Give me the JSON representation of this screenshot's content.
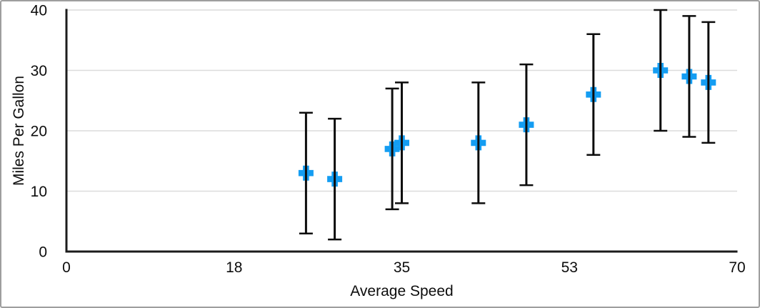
{
  "chart_data": {
    "type": "scatter",
    "title": "",
    "xlabel": "Average Speed",
    "ylabel": "Miles Per Gallon",
    "xlim": [
      0,
      70
    ],
    "ylim": [
      0,
      40
    ],
    "grid": "horizontal-only",
    "legend": "none",
    "marker": "plus-cross",
    "x_ticks": [
      {
        "value": 0,
        "label": "0"
      },
      {
        "value": 17.5,
        "label": "18"
      },
      {
        "value": 35,
        "label": "35"
      },
      {
        "value": 52.5,
        "label": "53"
      },
      {
        "value": 70,
        "label": "70"
      }
    ],
    "y_ticks": [
      {
        "value": 0,
        "label": "0"
      },
      {
        "value": 10,
        "label": "10"
      },
      {
        "value": 20,
        "label": "20"
      },
      {
        "value": 30,
        "label": "30"
      },
      {
        "value": 40,
        "label": "40"
      }
    ],
    "error_bars": {
      "mode": "fixed",
      "value": 10,
      "direction": "both",
      "caps": true
    },
    "points": [
      {
        "x": 25,
        "y": 13
      },
      {
        "x": 28,
        "y": 12
      },
      {
        "x": 34,
        "y": 17
      },
      {
        "x": 35,
        "y": 18
      },
      {
        "x": 43,
        "y": 18
      },
      {
        "x": 48,
        "y": 21
      },
      {
        "x": 55,
        "y": 26
      },
      {
        "x": 62,
        "y": 30
      },
      {
        "x": 65,
        "y": 29
      },
      {
        "x": 67,
        "y": 28
      }
    ]
  },
  "colors": {
    "marker": "#149df2",
    "error_bar": "#0d0d0d",
    "axis": "#1c1c1c",
    "gridline": "#dcdcdc",
    "text": "#0d0d0d",
    "frame_border": "#9e9e9e",
    "background": "#ffffff"
  }
}
